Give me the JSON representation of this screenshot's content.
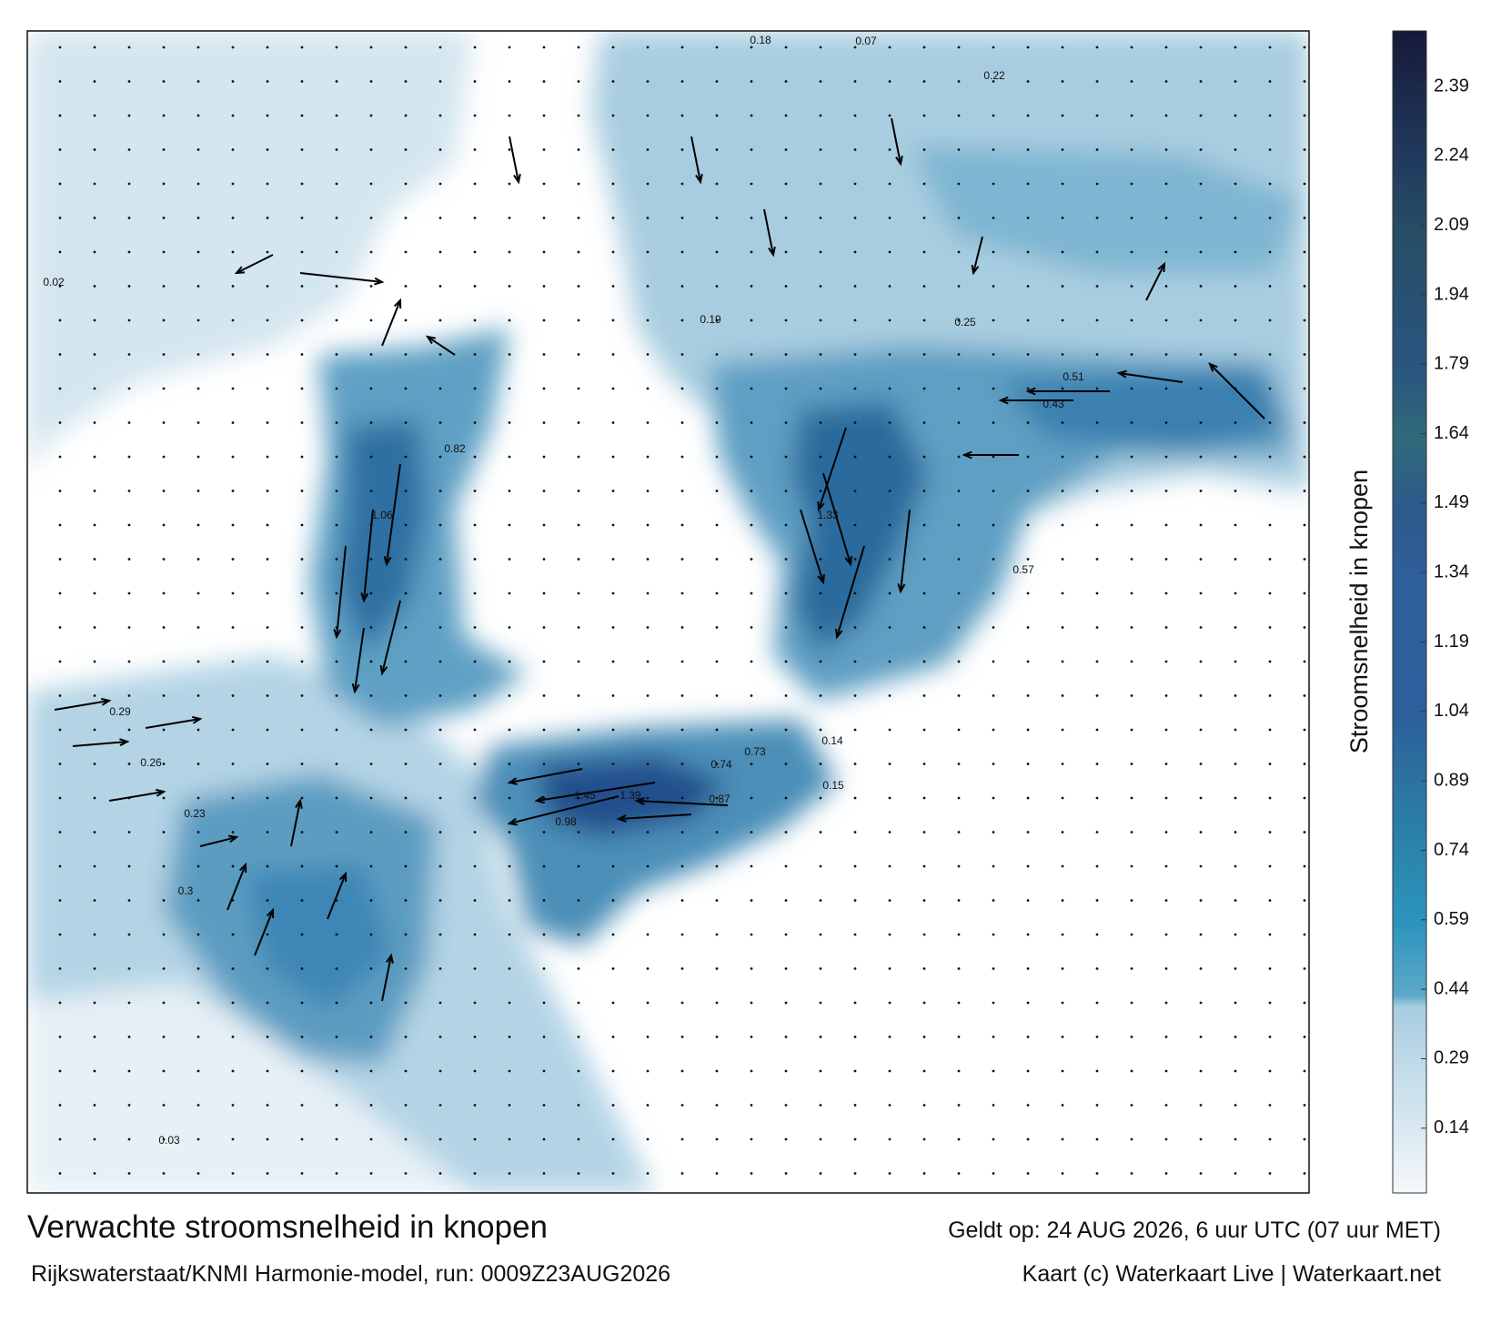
{
  "map": {
    "title": "Verwachte stroomsnelheid in knopen",
    "subtitle": "Rijkswaterstaat/KNMI Harmonie-model, run: 0009Z23AUG2026",
    "valid_time": "Geldt op: 24 AUG 2026, 6 uur UTC (07 uur MET)",
    "credit": "Kaart (c) Waterkaart Live | Waterkaart.net",
    "colorbar": {
      "label": "Stroomsnelheid in knopen",
      "lim": [
        0,
        2.51
      ],
      "ticks": [
        0.14,
        0.29,
        0.44,
        0.59,
        0.74,
        0.89,
        1.04,
        1.19,
        1.34,
        1.49,
        1.64,
        1.79,
        1.94,
        2.09,
        2.24,
        2.39
      ]
    },
    "labels": [
      "1.45",
      "1.39",
      "1.33",
      "1.06",
      "0.82",
      "0.74",
      "0.73",
      "0.57",
      "0.51",
      "0.43",
      "0.87",
      "0.98",
      "0.23",
      "0.26",
      "0.3",
      "0.29",
      "0.14",
      "0.15",
      "0.03",
      "0.02",
      "0.18",
      "0.07",
      "0.22",
      "0.25",
      "0.19"
    ]
  }
}
